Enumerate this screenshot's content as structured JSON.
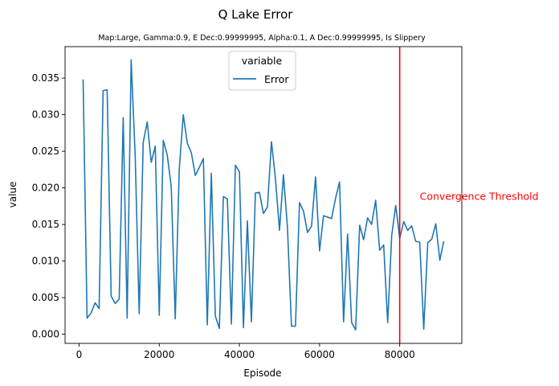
{
  "chart_data": {
    "type": "line",
    "title": "Q Lake Error",
    "subtitle": "Map:Large, Gamma:0.9, E Dec:0.99999995, Alpha:0.1, A Dec:0.99999995, Is Slippery",
    "xlabel": "Episode",
    "ylabel": "value",
    "xlim": [
      -3500,
      95500
    ],
    "ylim": [
      -0.00125,
      0.0393
    ],
    "xticks": [
      0,
      20000,
      40000,
      60000,
      80000
    ],
    "yticks": [
      0.0,
      0.005,
      0.01,
      0.015,
      0.02,
      0.025,
      0.03,
      0.035
    ],
    "ytick_labels": [
      "0.000",
      "0.005",
      "0.010",
      "0.015",
      "0.020",
      "0.025",
      "0.030",
      "0.035"
    ],
    "grid": false,
    "legend": {
      "title": "variable",
      "placement": "upper center"
    },
    "series": [
      {
        "name": "Error",
        "color": "#1f77b4",
        "x": [
          1000,
          2000,
          3000,
          4000,
          5000,
          6000,
          7000,
          8000,
          9000,
          10000,
          11000,
          12000,
          13000,
          14000,
          15000,
          16000,
          17000,
          18000,
          19000,
          20000,
          21000,
          22000,
          23000,
          24000,
          25000,
          26000,
          27000,
          28000,
          29000,
          30000,
          31000,
          32000,
          33000,
          34000,
          35000,
          36000,
          37000,
          38000,
          39000,
          40000,
          41000,
          42000,
          43000,
          44000,
          45000,
          46000,
          47000,
          48000,
          49000,
          50000,
          51000,
          52000,
          53000,
          54000,
          55000,
          56000,
          57000,
          58000,
          59000,
          60000,
          61000,
          62000,
          63000,
          64000,
          65000,
          66000,
          67000,
          68000,
          69000,
          70000,
          71000,
          72000,
          73000,
          74000,
          75000,
          76000,
          77000,
          78000,
          79000,
          80000,
          81000,
          82000,
          83000,
          84000,
          85000,
          86000,
          87000,
          88000,
          89000,
          90000,
          91000
        ],
        "values": [
          0.0348,
          0.0022,
          0.0029,
          0.0043,
          0.0035,
          0.0333,
          0.0334,
          0.0052,
          0.0042,
          0.0048,
          0.0296,
          0.0022,
          0.0375,
          0.0245,
          0.0028,
          0.0262,
          0.029,
          0.0235,
          0.0257,
          0.0026,
          0.0265,
          0.0245,
          0.0202,
          0.0021,
          0.0226,
          0.03,
          0.0261,
          0.0248,
          0.0217,
          0.0228,
          0.024,
          0.0013,
          0.022,
          0.0025,
          0.0008,
          0.0188,
          0.0185,
          0.0014,
          0.0231,
          0.0222,
          0.0009,
          0.0155,
          0.0017,
          0.0193,
          0.0194,
          0.0165,
          0.0174,
          0.0263,
          0.0212,
          0.0142,
          0.0218,
          0.0146,
          0.0011,
          0.0011,
          0.018,
          0.0168,
          0.0139,
          0.0148,
          0.0215,
          0.0114,
          0.0162,
          0.016,
          0.0158,
          0.0186,
          0.0208,
          0.0017,
          0.0137,
          0.0016,
          0.0006,
          0.0149,
          0.0129,
          0.0159,
          0.015,
          0.0183,
          0.0115,
          0.0122,
          0.0016,
          0.0135,
          0.0176,
          0.0131,
          0.0154,
          0.0142,
          0.0148,
          0.0127,
          0.0126,
          0.0007,
          0.0125,
          0.013,
          0.0151,
          0.0101,
          0.0127
        ]
      }
    ],
    "annotations": [
      {
        "type": "vline",
        "x": 80000,
        "color": "#ff0000"
      },
      {
        "type": "text",
        "text": "Convergence Threshold",
        "x": 85000,
        "y": 0.0188,
        "color": "#ff0000"
      }
    ]
  }
}
